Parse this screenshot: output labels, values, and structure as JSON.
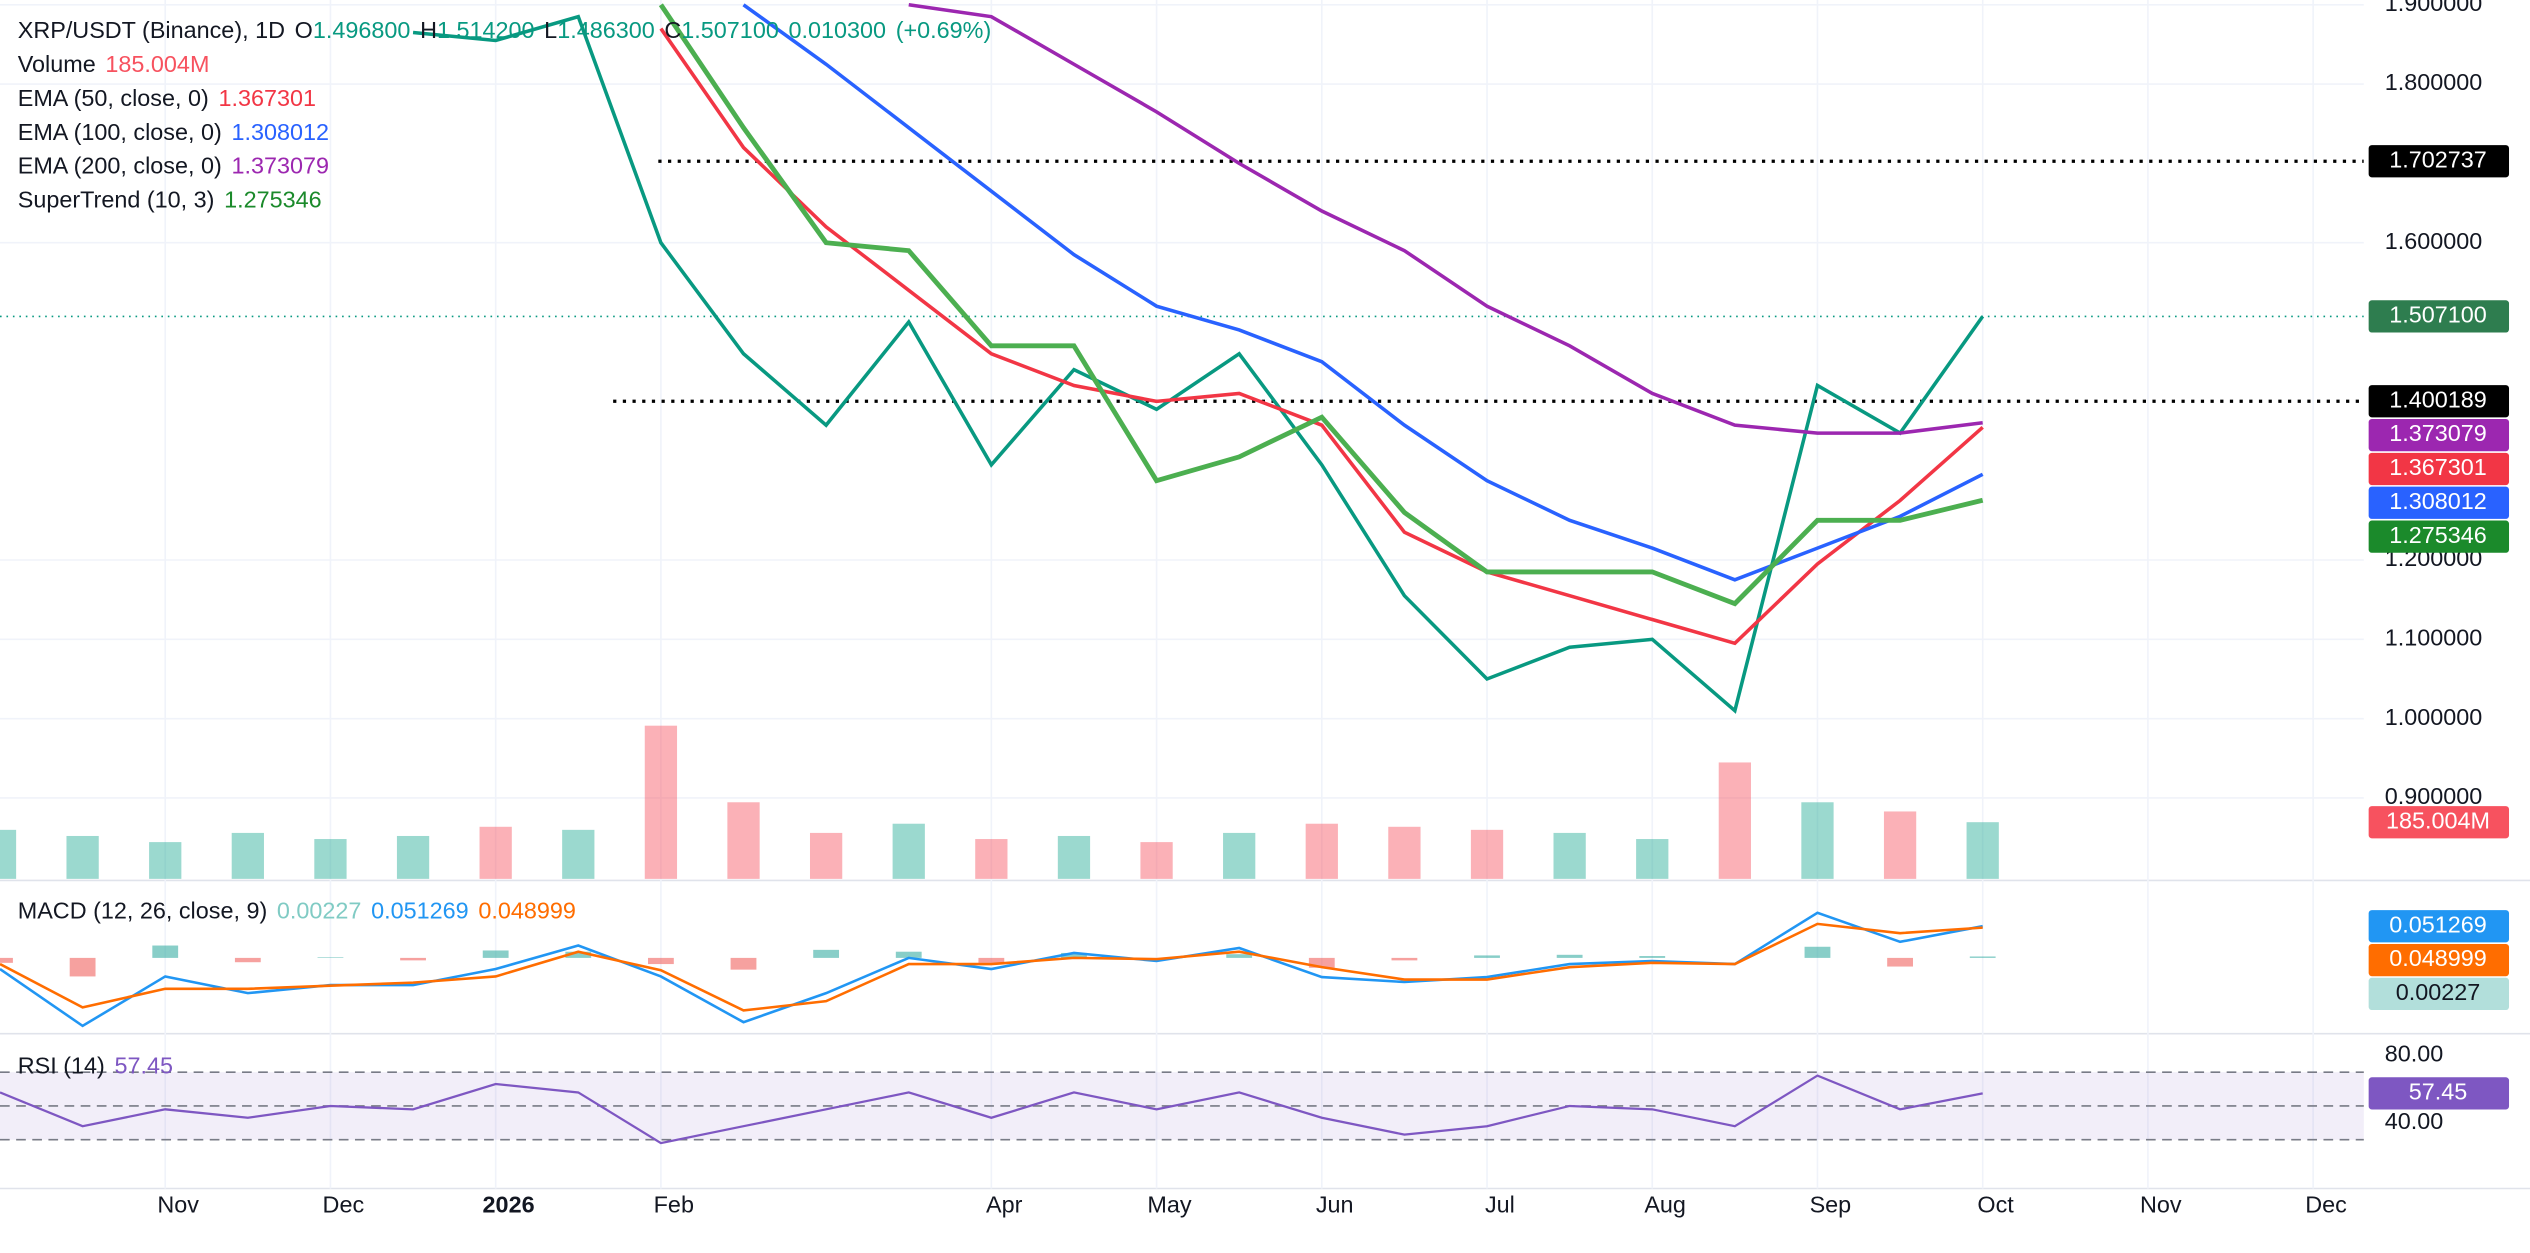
{
  "chart_data": [
    {
      "type": "line",
      "ohlc": [
        {
          "name": "O",
          "value": 1.4968,
          "label": "1.496800"
        },
        {
          "name": "H",
          "value": 1.5142,
          "label": "1.514200"
        },
        {
          "name": "L",
          "value": 1.4863,
          "label": "1.486300"
        },
        {
          "name": "C",
          "value": 1.5071,
          "label": "1.507100"
        }
      ],
      "change": {
        "value": 0.0103,
        "label": "0.010300"
      },
      "change_pct": {
        "value": 0.69,
        "label": "(+0.69%)"
      },
      "categories": [
        null,
        null,
        "Nov",
        null,
        "Dec",
        null,
        "2026",
        null,
        "Feb",
        null,
        null,
        null,
        "Apr",
        null,
        "May",
        null,
        "Jun",
        null,
        "Jul",
        null,
        "Aug",
        null,
        "Sep",
        null,
        "Oct",
        null,
        "Nov",
        null,
        "Dec",
        null
      ],
      "ylim": [
        0.798,
        1.906
      ],
      "yticks": [
        {
          "value": 1.9,
          "label": "1.900000"
        },
        {
          "value": 1.8,
          "label": "1.800000"
        },
        {
          "value": 1.6,
          "label": "1.600000"
        },
        {
          "value": 1.2,
          "label": "1.200000"
        },
        {
          "value": 1.1,
          "label": "1.100000"
        },
        {
          "value": 1.0,
          "label": "1.000000"
        },
        {
          "value": 0.9,
          "label": "0.900000"
        }
      ],
      "grid": true,
      "hlines": [
        1.702737,
        1.400189
      ],
      "series": [
        {
          "name": "XRP/USDT (Binance), 1D",
          "color": "#089981",
          "badge_color": "#2e7d4f",
          "last_label": "1.507100",
          "values": [
            null,
            null,
            null,
            null,
            null,
            1.865,
            1.855,
            1.885,
            1.6,
            1.46,
            1.37,
            1.5,
            1.32,
            1.44,
            1.39,
            1.46,
            1.32,
            1.155,
            1.05,
            1.09,
            1.1,
            1.01,
            1.42,
            1.36,
            1.5071,
            null,
            null,
            null,
            null,
            null
          ]
        },
        {
          "name": "EMA (50, close, 0)",
          "color": "#f23645",
          "values": [
            null,
            null,
            null,
            null,
            null,
            null,
            null,
            null,
            1.87,
            1.72,
            1.62,
            1.54,
            1.46,
            1.42,
            1.4,
            1.41,
            1.37,
            1.235,
            1.185,
            1.155,
            1.125,
            1.095,
            1.195,
            1.275,
            1.367301,
            null,
            null,
            null,
            null,
            null
          ]
        },
        {
          "name": "EMA (100, close, 0)",
          "color": "#2962ff",
          "values": [
            null,
            null,
            null,
            null,
            null,
            null,
            null,
            null,
            null,
            1.9,
            1.825,
            1.745,
            1.665,
            1.585,
            1.52,
            1.49,
            1.45,
            1.37,
            1.3,
            1.25,
            1.215,
            1.175,
            1.215,
            1.255,
            1.308012,
            null,
            null,
            null,
            null,
            null
          ]
        },
        {
          "name": "EMA (200, close, 0)",
          "color": "#9c27b0",
          "values": [
            null,
            null,
            null,
            null,
            null,
            null,
            null,
            null,
            null,
            null,
            null,
            1.9,
            1.885,
            1.825,
            1.765,
            1.7,
            1.64,
            1.59,
            1.52,
            1.47,
            1.41,
            1.37,
            1.36,
            1.36,
            1.373079,
            null,
            null,
            null,
            null,
            null
          ]
        },
        {
          "name": "SuperTrend (10, 3)",
          "color": "#4caf50",
          "badge_color": "#1b8a2b",
          "values": [
            null,
            null,
            null,
            null,
            null,
            null,
            null,
            null,
            1.9,
            1.745,
            1.6,
            1.59,
            1.47,
            1.47,
            1.3,
            1.33,
            1.38,
            1.26,
            1.185,
            1.185,
            1.185,
            1.145,
            1.25,
            1.25,
            1.275346,
            null,
            null,
            null,
            null,
            null
          ]
        }
      ]
    },
    {
      "type": "bar",
      "name": "Volume",
      "up_color": "#22ab94",
      "down_color": "#f7525f",
      "last_label": "185.004M",
      "values": [
        160,
        140,
        120,
        150,
        130,
        140,
        170,
        160,
        500,
        250,
        150,
        180,
        130,
        140,
        120,
        150,
        180,
        170,
        160,
        150,
        130,
        380,
        250,
        220,
        185.004,
        null,
        null,
        null,
        null,
        null
      ]
    },
    {
      "type": "line",
      "title": "MACD (12, 26, close, 9)",
      "ylim": [
        -0.12,
        0.12
      ],
      "series": [
        {
          "type": "bar",
          "color": "#26a69a",
          "negative_color": "#ef5350",
          "badge_color": "#b2dfdb",
          "values": [
            -0.008,
            -0.03,
            0.02,
            -0.007,
            0.001,
            -0.004,
            0.012,
            0.01,
            -0.01,
            -0.019,
            0.013,
            0.01,
            -0.008,
            0.008,
            -0.003,
            0.006,
            -0.016,
            -0.004,
            0.004,
            0.005,
            0.003,
            0,
            0.018,
            -0.014,
            0.00227,
            null,
            null,
            null,
            null,
            null
          ]
        },
        {
          "color": "#2196f3",
          "values": [
            -0.018,
            -0.11,
            -0.03,
            -0.057,
            -0.044,
            -0.044,
            -0.018,
            0.02,
            -0.03,
            -0.104,
            -0.057,
            0,
            -0.018,
            0.008,
            -0.005,
            0.016,
            -0.031,
            -0.039,
            -0.031,
            -0.01,
            -0.005,
            -0.01,
            0.073,
            0.026,
            0.051269,
            null,
            null,
            null,
            null,
            null
          ]
        },
        {
          "color": "#ff6d00",
          "values": [
            -0.01,
            -0.08,
            -0.05,
            -0.05,
            -0.045,
            -0.04,
            -0.03,
            0.01,
            -0.02,
            -0.085,
            -0.07,
            -0.01,
            -0.01,
            0,
            -0.002,
            0.01,
            -0.015,
            -0.035,
            -0.035,
            -0.015,
            -0.008,
            -0.01,
            0.055,
            0.04,
            0.048999,
            null,
            null,
            null,
            null,
            null
          ]
        }
      ]
    },
    {
      "type": "line",
      "title": "RSI (14)",
      "ylim": [
        3,
        89
      ],
      "yticks": [
        {
          "value": 80,
          "label": "80.00"
        },
        {
          "value": 40,
          "label": "40.00"
        }
      ],
      "levels": [
        70,
        50,
        30
      ],
      "series": [
        {
          "color": "#7e57c2",
          "values": [
            58,
            38,
            48,
            43,
            50,
            48,
            63,
            58,
            28,
            38,
            48,
            58,
            43,
            58,
            48,
            58,
            43,
            33,
            38,
            50,
            48,
            38,
            68,
            48,
            57.45,
            null,
            null,
            null,
            null,
            null
          ]
        }
      ]
    }
  ]
}
